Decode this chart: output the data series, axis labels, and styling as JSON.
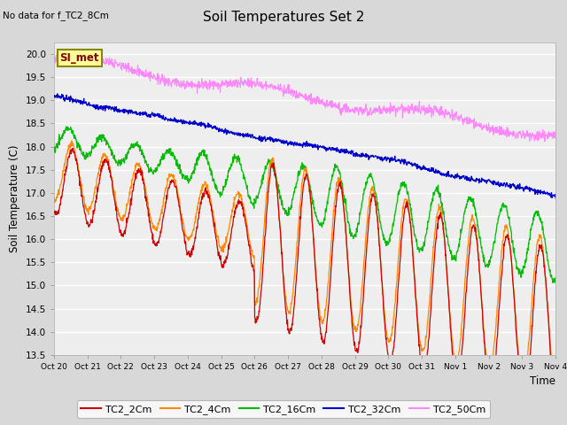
{
  "title": "Soil Temperatures Set 2",
  "subtitle": "No data for f_TC2_8Cm",
  "xlabel": "Time",
  "ylabel": "Soil Temperature (C)",
  "ylim": [
    13.5,
    20.25
  ],
  "yticks": [
    13.5,
    14.0,
    14.5,
    15.0,
    15.5,
    16.0,
    16.5,
    17.0,
    17.5,
    18.0,
    18.5,
    19.0,
    19.5,
    20.0
  ],
  "xtick_labels": [
    "Oct 20",
    "Oct 21",
    "Oct 22",
    "Oct 23",
    "Oct 24",
    "Oct 25",
    "Oct 26",
    "Oct 27",
    "Oct 28",
    "Oct 29",
    "Oct 30",
    "Oct 31",
    "Nov 1",
    "Nov 2",
    "Nov 3",
    "Nov 4"
  ],
  "colors": {
    "TC2_2Cm": "#cc0000",
    "TC2_4Cm": "#ff8800",
    "TC2_16Cm": "#00bb00",
    "TC2_32Cm": "#0000cc",
    "TC2_50Cm": "#ff88ff"
  },
  "bg_color": "#d8d8d8",
  "plot_bg": "#eeeeee",
  "legend_label": "SI_met",
  "legend_bg": "#ffff99",
  "legend_border": "#888800",
  "fig_width": 6.4,
  "fig_height": 4.8,
  "fig_dpi": 100
}
